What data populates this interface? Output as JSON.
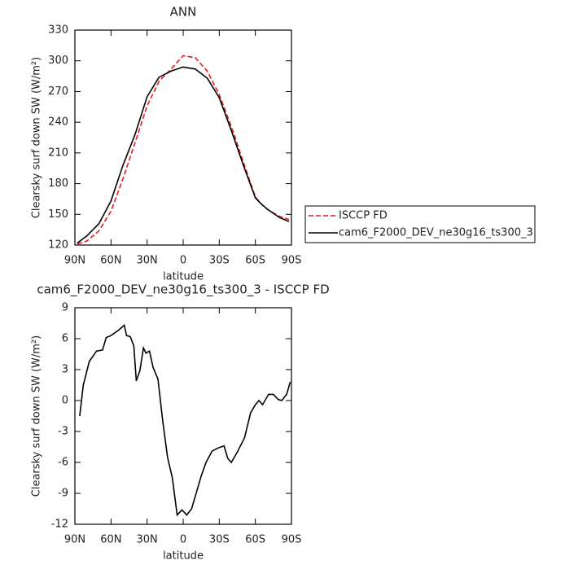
{
  "chart_data": [
    {
      "type": "line",
      "title": "ANN",
      "ylabel": "Clearsky surf down SW (W/m²)",
      "xlabel": "latitude",
      "x": [
        88,
        80,
        70,
        60,
        50,
        40,
        30,
        20,
        10,
        0,
        -10,
        -20,
        -30,
        -40,
        -50,
        -60,
        -65,
        -70,
        -80,
        -88
      ],
      "series": [
        {
          "name": "ISCCP FD",
          "color": "#e41a1c",
          "linestyle": "dashed",
          "values": [
            121,
            124,
            134,
            153,
            185,
            220,
            256,
            280,
            292,
            305,
            303,
            290,
            267,
            236,
            201,
            167,
            160,
            155,
            148,
            145
          ]
        },
        {
          "name": "cam6_F2000_DEV_ne30g16_ts300_3",
          "color": "#000000",
          "linestyle": "solid",
          "values": [
            122,
            129,
            141,
            163,
            198,
            228,
            265,
            284,
            290,
            294,
            292,
            283,
            264,
            232,
            198,
            166,
            160,
            155,
            147,
            143
          ]
        }
      ],
      "xlim": [
        90,
        -90
      ],
      "xticks": [
        {
          "value": 90,
          "label": "90N"
        },
        {
          "value": 60,
          "label": "60N"
        },
        {
          "value": 30,
          "label": "30N"
        },
        0,
        {
          "value": -30,
          "label": "30S"
        },
        {
          "value": -60,
          "label": "60S"
        },
        {
          "value": -90,
          "label": "90S"
        }
      ],
      "ylim": [
        120,
        330
      ],
      "yticks": [
        120,
        150,
        180,
        210,
        240,
        270,
        300,
        330
      ],
      "legend": "right"
    },
    {
      "type": "line",
      "title": "cam6_F2000_DEV_ne30g16_ts300_3 - ISCCP FD",
      "ylabel": "Clearsky surf down SW (W/m²)",
      "xlabel": "latitude",
      "x": [
        86,
        83,
        78,
        72,
        67,
        64,
        60,
        54,
        49,
        47,
        44,
        41,
        39,
        36,
        33,
        31,
        28,
        25,
        21,
        17,
        13,
        9,
        5,
        1,
        -3,
        -7,
        -11,
        -15,
        -19,
        -24,
        -29,
        -34,
        -37,
        -40,
        -45,
        -51,
        -56,
        -60,
        -63,
        -66,
        -71,
        -75,
        -79,
        -82,
        -86,
        -89
      ],
      "values": [
        -1.5,
        1.5,
        3.8,
        4.8,
        4.9,
        6.1,
        6.3,
        6.8,
        7.3,
        6.3,
        6.2,
        5.3,
        1.9,
        2.9,
        5.1,
        4.6,
        4.8,
        3.2,
        2.1,
        -2,
        -5.5,
        -7.5,
        -11.1,
        -10.6,
        -11.1,
        -10.5,
        -8.9,
        -7.3,
        -6,
        -4.9,
        -4.6,
        -4.4,
        -5.6,
        -6,
        -5,
        -3.6,
        -1.2,
        -0.4,
        0,
        -0.4,
        0.6,
        0.6,
        0.1,
        0,
        0.6,
        1.8
      ],
      "color": "#000000",
      "xlim": [
        90,
        -90
      ],
      "xticks": [
        {
          "value": 90,
          "label": "90N"
        },
        {
          "value": 60,
          "label": "60N"
        },
        {
          "value": 30,
          "label": "30N"
        },
        0,
        {
          "value": -30,
          "label": "30S"
        },
        {
          "value": -60,
          "label": "60S"
        },
        {
          "value": -90,
          "label": "90S"
        }
      ],
      "ylim": [
        -12,
        9
      ],
      "yticks": [
        -12,
        -9,
        -6,
        -3,
        0,
        3,
        6,
        9
      ]
    }
  ]
}
